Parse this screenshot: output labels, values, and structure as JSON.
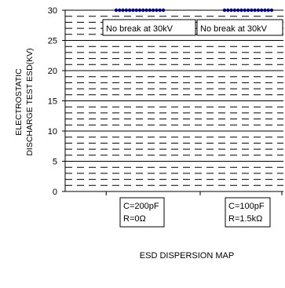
{
  "chart_data": {
    "type": "scatter",
    "title": "",
    "xlabel": "ESD DISPERSION MAP",
    "ylabel": [
      "ELECTROSTATIC",
      "DISCHARGE TEST ESD(KV)"
    ],
    "ylim": [
      0,
      30
    ],
    "yticks": [
      "0",
      "5",
      "10",
      "15",
      "20",
      "25",
      "30"
    ],
    "grid": {
      "major": true,
      "minor_dashed": true
    },
    "categories": [
      {
        "lines": [
          "C=200pF",
          "R=0Ω"
        ]
      },
      {
        "lines": [
          "C=100pF",
          "R=1.5kΩ"
        ]
      }
    ],
    "series": [
      {
        "category": 0,
        "values": [
          30,
          30,
          30,
          30,
          30,
          30,
          30,
          30,
          30,
          30,
          30,
          30,
          30,
          30,
          30
        ],
        "color": "#00008b"
      },
      {
        "category": 1,
        "values": [
          30,
          30,
          30,
          30,
          30,
          30,
          30,
          30,
          30,
          30,
          30,
          30,
          30,
          30,
          30
        ],
        "color": "#00008b"
      }
    ],
    "annotations": [
      {
        "category": 0,
        "text": "No break at 30kV"
      },
      {
        "category": 1,
        "text": "No break at 30kV"
      }
    ]
  }
}
